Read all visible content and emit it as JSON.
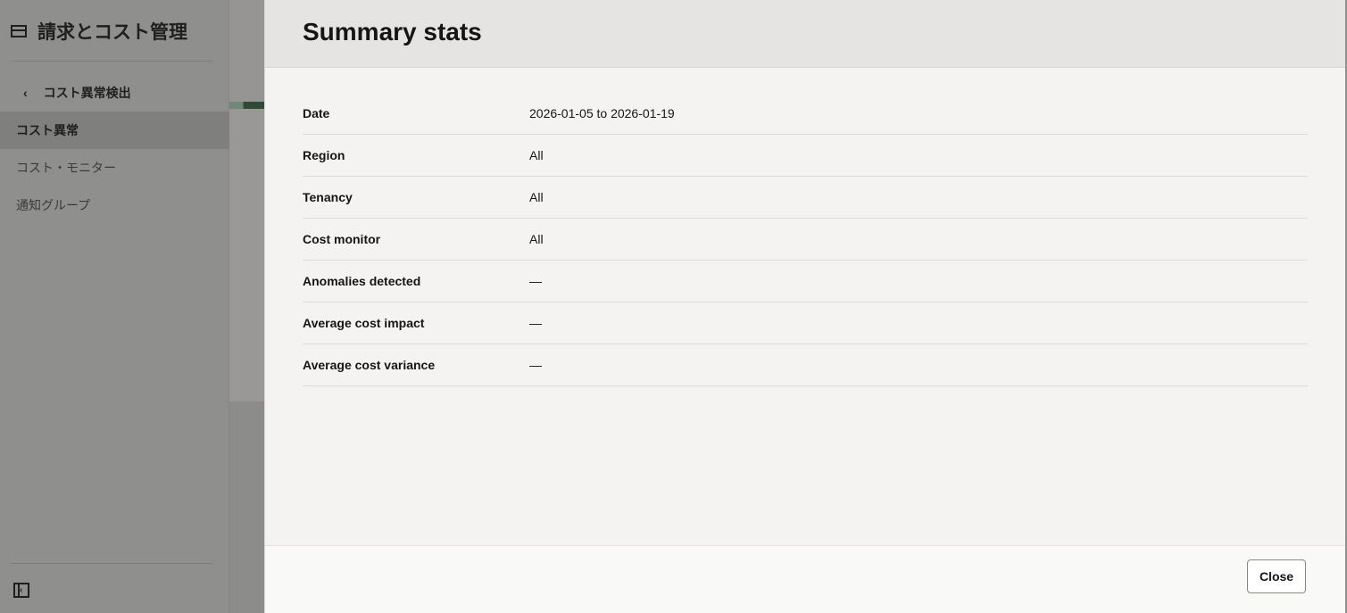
{
  "sidebar": {
    "title": "請求とコスト管理",
    "title_icon": "billing-icon",
    "back_label": "コスト異常検出",
    "items": [
      {
        "label": "コスト異常",
        "active": true
      },
      {
        "label": "コスト・モニター"
      },
      {
        "label": "通知グループ"
      }
    ],
    "collapse_icon": "collapse-sidebar-icon"
  },
  "panel": {
    "title": "Summary stats",
    "rows": [
      {
        "label": "Date",
        "value": "2026-01-05 to 2026-01-19"
      },
      {
        "label": "Region",
        "value": "All"
      },
      {
        "label": "Tenancy",
        "value": "All"
      },
      {
        "label": "Cost monitor",
        "value": "All"
      },
      {
        "label": "Anomalies detected",
        "value": "—"
      },
      {
        "label": "Average cost impact",
        "value": "—"
      },
      {
        "label": "Average cost variance",
        "value": "—"
      }
    ],
    "close_label": "Close"
  }
}
